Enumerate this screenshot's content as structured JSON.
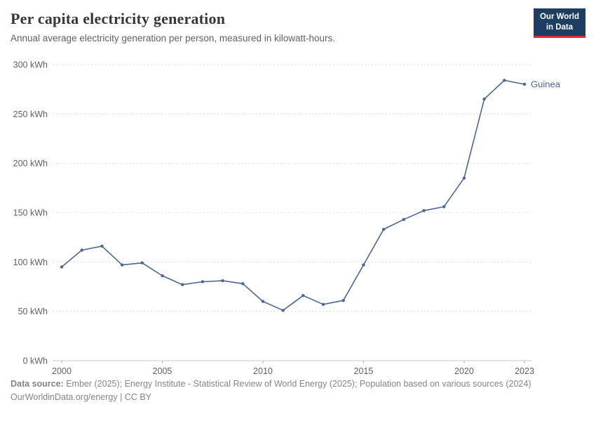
{
  "header": {
    "title": "Per capita electricity generation",
    "subtitle": "Annual average electricity generation per person, measured in kilowatt-hours.",
    "logo_line1": "Our World",
    "logo_line2": "in Data"
  },
  "colors": {
    "line": "#4a6791",
    "logo_bg": "#1d3d63",
    "logo_accent": "#e0282e"
  },
  "chart_data": {
    "type": "line",
    "title": "Per capita electricity generation",
    "series_label": "Guinea",
    "x": [
      2000,
      2001,
      2002,
      2003,
      2004,
      2005,
      2006,
      2007,
      2008,
      2009,
      2010,
      2011,
      2012,
      2013,
      2014,
      2015,
      2016,
      2017,
      2018,
      2019,
      2020,
      2021,
      2022,
      2023
    ],
    "values": [
      95,
      112,
      116,
      97,
      99,
      86,
      77,
      80,
      81,
      78,
      60,
      51,
      66,
      57,
      61,
      97,
      133,
      143,
      152,
      156,
      185,
      265,
      284,
      280
    ],
    "ylim": [
      0,
      300
    ],
    "yticks": [
      0,
      50,
      100,
      150,
      200,
      250,
      300
    ],
    "y_unit": "kWh",
    "xticks": [
      2000,
      2005,
      2010,
      2015,
      2020,
      2023
    ],
    "grid": true,
    "legend_position": "end-of-line",
    "line_color": "#4a6791"
  },
  "footer": {
    "source_label": "Data source:",
    "source_text": " Ember (2025); Energy Institute - Statistical Review of World Energy (2025); Population based on various sources (2024)",
    "license": "OurWorldinData.org/energy | CC BY"
  }
}
